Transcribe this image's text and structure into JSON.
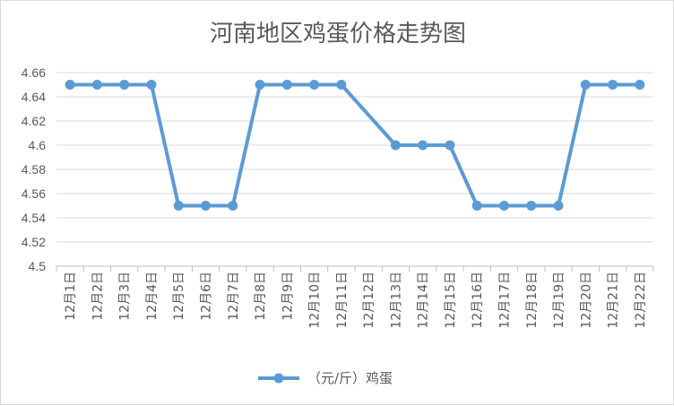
{
  "chart_data": {
    "type": "line",
    "title": "河南地区鸡蛋价格走势图",
    "xlabel": "",
    "ylabel": "",
    "categories": [
      "12月1日",
      "12月2日",
      "12月3日",
      "12月4日",
      "12月5日",
      "12月6日",
      "12月7日",
      "12月8日",
      "12月9日",
      "12月10日",
      "12月11日",
      "12月12日",
      "12月13日",
      "12月14日",
      "12月15日",
      "12月16日",
      "12月17日",
      "12月18日",
      "12月19日",
      "12月20日",
      "12月21日",
      "12月22日"
    ],
    "series": [
      {
        "name": "（元/斤）鸡蛋",
        "color": "#5b9bd5",
        "values": [
          4.65,
          4.65,
          4.65,
          4.65,
          4.55,
          4.55,
          4.55,
          4.65,
          4.65,
          4.65,
          4.65,
          null,
          4.6,
          4.6,
          4.6,
          4.55,
          4.55,
          4.55,
          4.55,
          4.65,
          4.65,
          4.65
        ]
      }
    ],
    "ylim": [
      4.5,
      4.66
    ],
    "yticks": [
      "4.5",
      "4.52",
      "4.54",
      "4.56",
      "4.58",
      "4.6",
      "4.62",
      "4.64",
      "4.66"
    ],
    "grid": "horizontal",
    "legend": "bottom"
  }
}
